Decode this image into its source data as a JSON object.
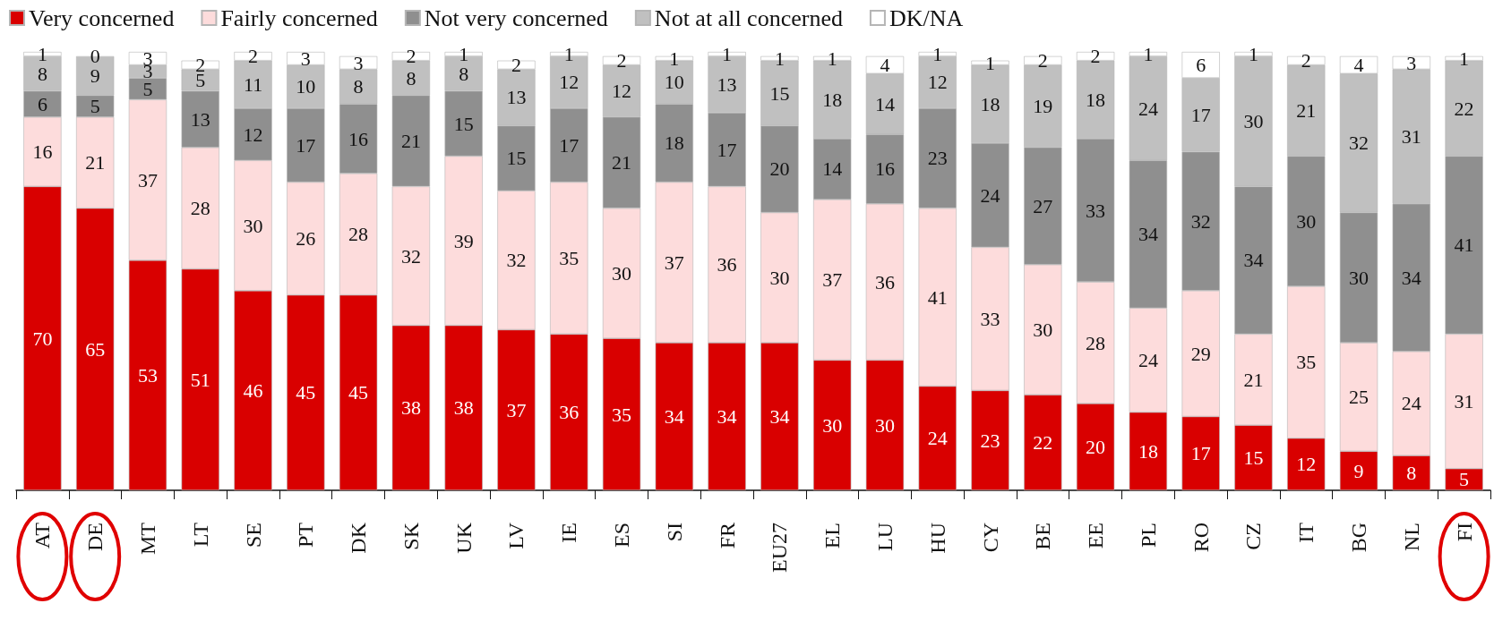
{
  "chart_data": {
    "type": "bar",
    "stacked": true,
    "data_labels": true,
    "legend": "top left",
    "grid": false,
    "categories": [
      "AT",
      "DE",
      "MT",
      "LT",
      "SE",
      "PT",
      "DK",
      "SK",
      "UK",
      "LV",
      "IE",
      "ES",
      "SI",
      "FR",
      "EU27",
      "EL",
      "LU",
      "HU",
      "CY",
      "BE",
      "EE",
      "PL",
      "RO",
      "CZ",
      "IT",
      "BG",
      "NL",
      "FI"
    ],
    "series": [
      {
        "name": "Very concerned",
        "color": "#d90000",
        "values": [
          70,
          65,
          53,
          51,
          46,
          45,
          45,
          38,
          38,
          37,
          36,
          35,
          34,
          34,
          34,
          30,
          30,
          24,
          23,
          22,
          20,
          18,
          17,
          15,
          12,
          9,
          8,
          5
        ]
      },
      {
        "name": "Fairly concerned",
        "color": "#fddcdc",
        "values": [
          16,
          21,
          37,
          28,
          30,
          26,
          28,
          32,
          39,
          32,
          35,
          30,
          37,
          36,
          30,
          37,
          36,
          41,
          33,
          30,
          28,
          24,
          29,
          21,
          35,
          25,
          24,
          31
        ]
      },
      {
        "name": "Not very concerned",
        "color": "#8f8f8f",
        "values": [
          6,
          5,
          5,
          13,
          12,
          17,
          16,
          21,
          15,
          15,
          17,
          21,
          18,
          17,
          20,
          14,
          16,
          23,
          24,
          27,
          33,
          34,
          32,
          34,
          30,
          30,
          34,
          41
        ]
      },
      {
        "name": "Not at all concerned",
        "color": "#c0c0c0",
        "values": [
          8,
          9,
          3,
          5,
          11,
          10,
          8,
          8,
          8,
          13,
          12,
          12,
          10,
          13,
          15,
          18,
          14,
          12,
          18,
          19,
          18,
          24,
          17,
          30,
          21,
          32,
          31,
          22
        ]
      },
      {
        "name": "DK/NA",
        "color": "#ffffff",
        "values": [
          1,
          0,
          3,
          2,
          2,
          3,
          3,
          2,
          1,
          2,
          1,
          2,
          1,
          1,
          1,
          1,
          4,
          1,
          1,
          2,
          2,
          1,
          6,
          1,
          2,
          4,
          3,
          1
        ]
      }
    ]
  }
}
